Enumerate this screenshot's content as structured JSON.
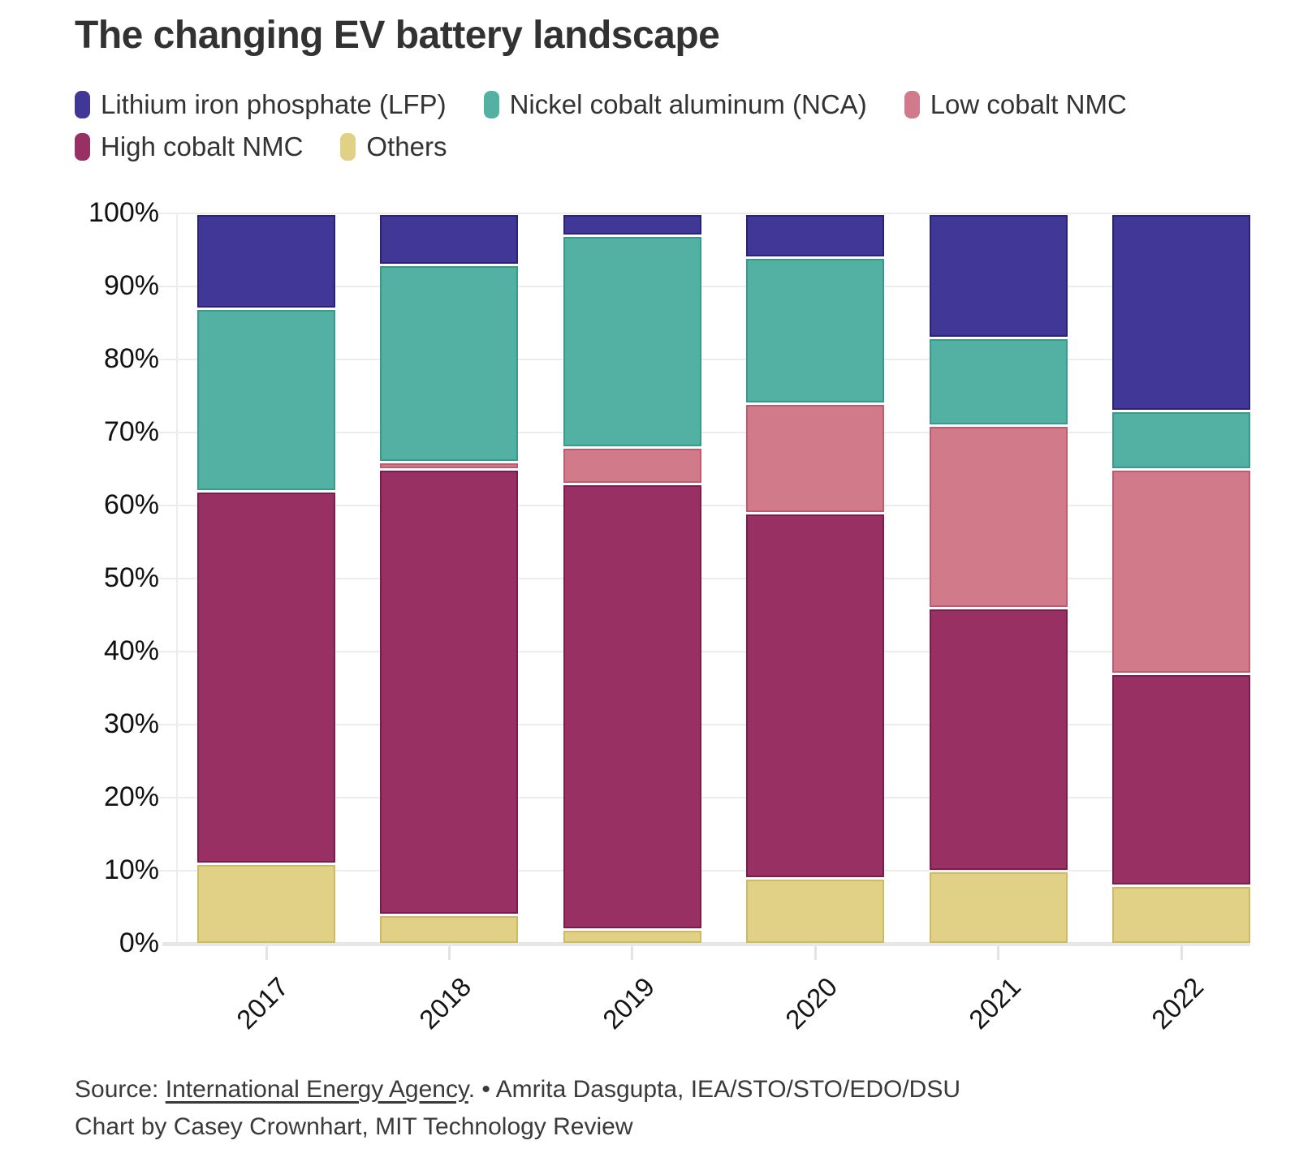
{
  "title": "The changing EV battery landscape",
  "legend": {
    "items": [
      {
        "label": "Lithium iron phosphate (LFP)",
        "color": "#413796"
      },
      {
        "label": "Nickel cobalt aluminum (NCA)",
        "color": "#52b1a3"
      },
      {
        "label": "Low cobalt NMC",
        "color": "#d17a89"
      },
      {
        "label": "High cobalt NMC",
        "color": "#983063"
      },
      {
        "label": "Others",
        "color": "#e0d187"
      }
    ]
  },
  "chart_data": {
    "type": "bar",
    "stacked": true,
    "unit": "percent",
    "title": "The changing EV battery landscape",
    "xlabel": "",
    "ylabel": "",
    "ylim": [
      0,
      100
    ],
    "grid": true,
    "legend_position": "top",
    "categories": [
      "2017",
      "2018",
      "2019",
      "2020",
      "2021",
      "2022"
    ],
    "y_tick_labels": [
      "0%",
      "10%",
      "20%",
      "30%",
      "40%",
      "50%",
      "60%",
      "70%",
      "80%",
      "90%",
      "100%"
    ],
    "series": [
      {
        "name": "Others",
        "color": "#e0d187",
        "stroke": "#cdba62",
        "values": [
          11,
          4,
          2,
          9,
          10,
          8
        ]
      },
      {
        "name": "High cobalt NMC",
        "color": "#983063",
        "stroke": "#7a1c4e",
        "values": [
          51,
          61,
          61,
          50,
          36,
          29
        ]
      },
      {
        "name": "Low cobalt NMC",
        "color": "#d17a89",
        "stroke": "#c05b6f",
        "values": [
          0,
          1,
          5,
          15,
          25,
          28
        ]
      },
      {
        "name": "Nickel cobalt aluminum (NCA)",
        "color": "#52b1a3",
        "stroke": "#379a8b",
        "values": [
          25,
          27,
          29,
          20,
          12,
          8
        ]
      },
      {
        "name": "Lithium iron phosphate (LFP)",
        "color": "#413796",
        "stroke": "#2a2178",
        "values": [
          13,
          7,
          3,
          6,
          17,
          27
        ]
      }
    ]
  },
  "source": {
    "prefix": "Source: ",
    "link": "International Energy Agency",
    "suffix": ". • Amrita Dasgupta, IEA/STO/STO/EDO/DSU",
    "line2": "Chart by Casey Crownhart, MIT Technology Review"
  }
}
